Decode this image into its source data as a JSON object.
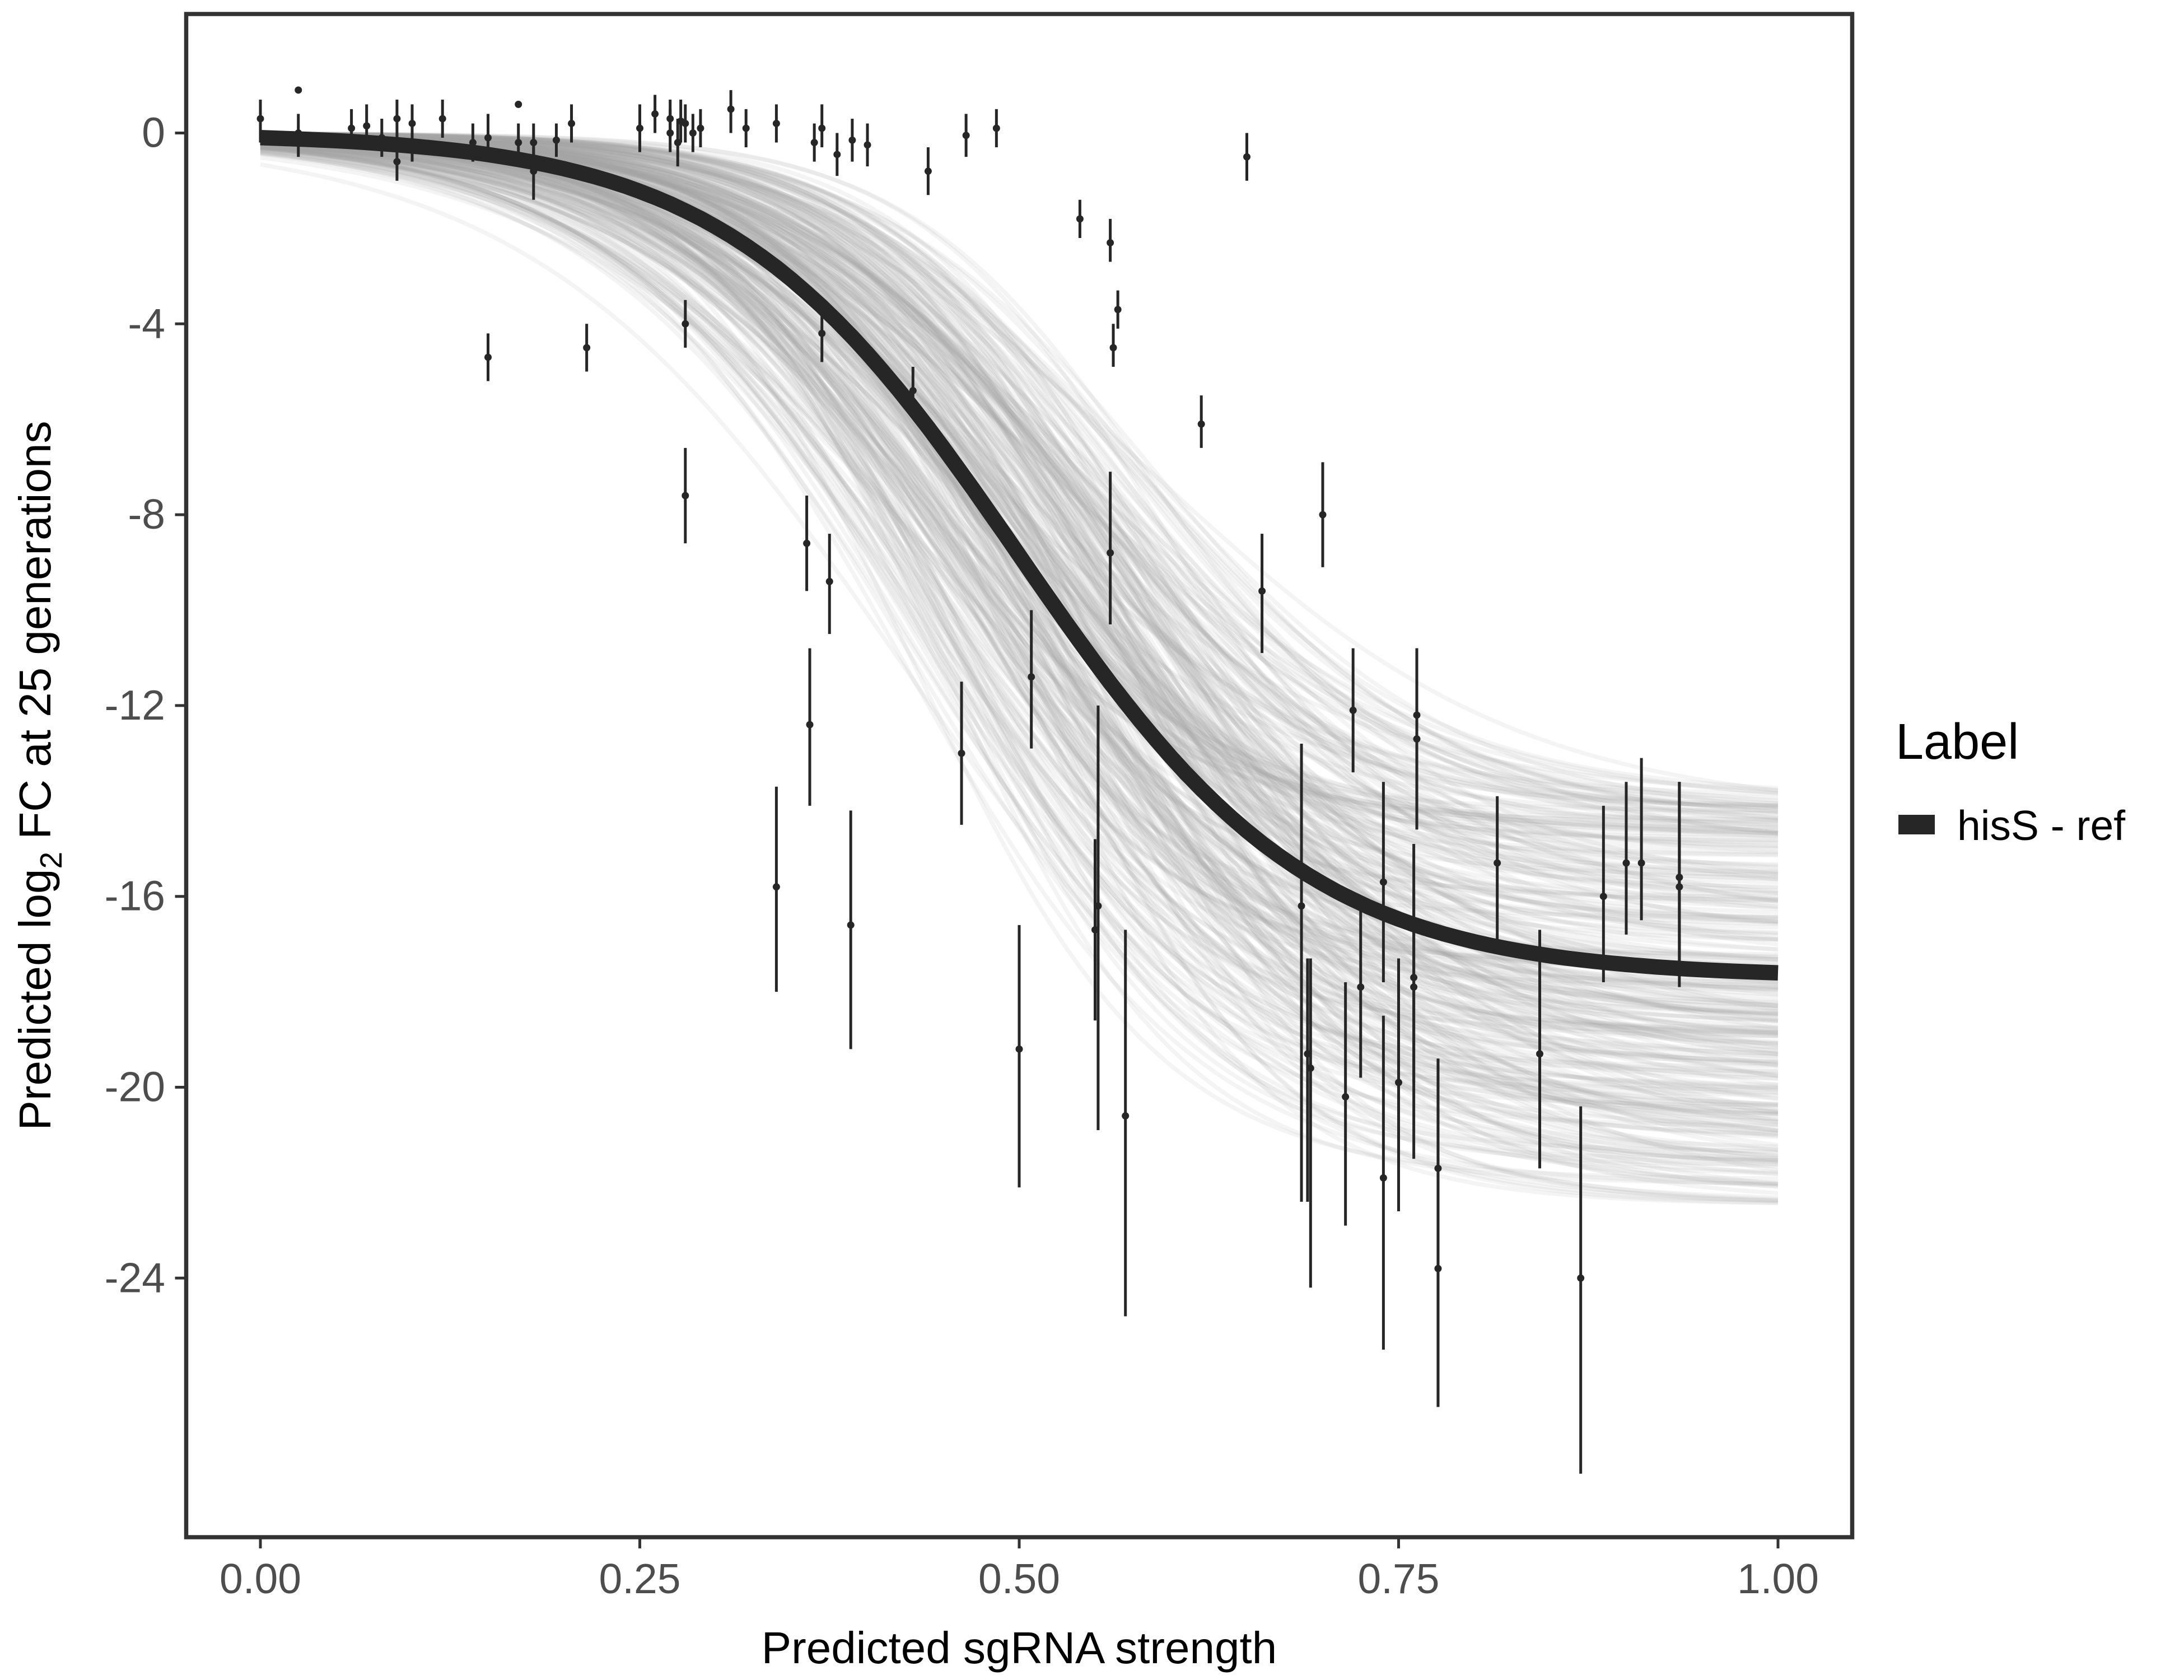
{
  "chart_data": {
    "type": "scatter",
    "title": "",
    "xlabel": "Predicted sgRNA strength",
    "ylabel_parts": [
      "Predicted  log",
      "2",
      " FC at 25 generations"
    ],
    "xlim": [
      -0.05,
      1.05
    ],
    "ylim": [
      -29.5,
      2.5
    ],
    "xticks": [
      0,
      0.25,
      0.5,
      0.75,
      1
    ],
    "xtick_labels": [
      "0.00",
      "0.25",
      "0.50",
      "0.75",
      "1.00"
    ],
    "yticks": [
      0,
      -4,
      -8,
      -12,
      -16,
      -20,
      -24
    ],
    "ytick_labels": [
      "0",
      "-4",
      "-8",
      "-12",
      "-16",
      "-20",
      "-24"
    ],
    "grid": false,
    "legend": {
      "title": "Label",
      "placement": "right",
      "entries": [
        {
          "label": "hisS - ref",
          "color": "#262626"
        }
      ]
    },
    "fit": {
      "type": "logistic",
      "asymptote": -17.7,
      "midpoint": 0.5,
      "slope": 10.4,
      "color": "#262626"
    },
    "posterior_draws": {
      "count": 300,
      "color": "#a6a6a6",
      "asymptote_range": [
        -22.5,
        -13.8
      ],
      "midpoint_range": [
        0.42,
        0.6
      ],
      "slope_range": [
        8,
        13
      ]
    },
    "points": [
      [
        0.0,
        0.3,
        -0.2,
        0.7
      ],
      [
        0.025,
        0.9,
        0.9,
        0.9
      ],
      [
        0.025,
        0.0,
        -0.5,
        0.4
      ],
      [
        0.06,
        0.1,
        -0.3,
        0.5
      ],
      [
        0.07,
        0.15,
        -0.3,
        0.6
      ],
      [
        0.08,
        -0.1,
        -0.5,
        0.3
      ],
      [
        0.09,
        0.3,
        -0.2,
        0.7
      ],
      [
        0.09,
        -0.6,
        -1.0,
        -0.2
      ],
      [
        0.1,
        0.2,
        -0.2,
        0.6
      ],
      [
        0.1,
        -0.2,
        -0.6,
        0.2
      ],
      [
        0.12,
        0.3,
        -0.1,
        0.7
      ],
      [
        0.14,
        -0.2,
        -0.6,
        0.2
      ],
      [
        0.15,
        -0.1,
        -0.6,
        0.4
      ],
      [
        0.15,
        -4.7,
        -5.2,
        -4.2
      ],
      [
        0.17,
        0.6,
        0.6,
        0.6
      ],
      [
        0.17,
        -0.2,
        -0.6,
        0.2
      ],
      [
        0.18,
        -0.2,
        -0.6,
        0.2
      ],
      [
        0.18,
        -0.8,
        -1.4,
        -0.3
      ],
      [
        0.195,
        -0.15,
        -0.5,
        0.2
      ],
      [
        0.205,
        0.2,
        -0.2,
        0.6
      ],
      [
        0.215,
        -4.5,
        -5.0,
        -4.0
      ],
      [
        0.25,
        0.1,
        -0.4,
        0.6
      ],
      [
        0.26,
        0.4,
        0.0,
        0.8
      ],
      [
        0.27,
        0.3,
        -0.1,
        0.7
      ],
      [
        0.27,
        0.0,
        -0.4,
        0.5
      ],
      [
        0.275,
        -0.2,
        -0.7,
        0.3
      ],
      [
        0.277,
        0.25,
        -0.2,
        0.7
      ],
      [
        0.28,
        -4.0,
        -4.5,
        -3.5
      ],
      [
        0.28,
        -7.6,
        -8.6,
        -6.6
      ],
      [
        0.28,
        0.2,
        -0.2,
        0.6
      ],
      [
        0.285,
        0.0,
        -0.4,
        0.4
      ],
      [
        0.29,
        0.1,
        -0.3,
        0.5
      ],
      [
        0.31,
        0.5,
        0.0,
        0.9
      ],
      [
        0.32,
        0.1,
        -0.3,
        0.5
      ],
      [
        0.34,
        0.2,
        -0.2,
        0.6
      ],
      [
        0.34,
        -15.8,
        -18.0,
        -13.7
      ],
      [
        0.36,
        -8.6,
        -9.6,
        -7.6
      ],
      [
        0.362,
        -12.4,
        -14.1,
        -10.8
      ],
      [
        0.365,
        -0.2,
        -0.6,
        0.2
      ],
      [
        0.37,
        0.1,
        -0.3,
        0.6
      ],
      [
        0.37,
        -4.2,
        -4.8,
        -3.7
      ],
      [
        0.375,
        -9.4,
        -10.5,
        -8.4
      ],
      [
        0.38,
        -0.45,
        -0.9,
        0.0
      ],
      [
        0.39,
        -0.15,
        -0.6,
        0.3
      ],
      [
        0.389,
        -16.6,
        -19.2,
        -14.2
      ],
      [
        0.4,
        -0.25,
        -0.7,
        0.2
      ],
      [
        0.43,
        -5.4,
        -5.9,
        -4.9
      ],
      [
        0.44,
        -0.8,
        -1.3,
        -0.3
      ],
      [
        0.462,
        -13.0,
        -14.5,
        -11.5
      ],
      [
        0.465,
        -0.05,
        -0.5,
        0.4
      ],
      [
        0.485,
        0.1,
        -0.3,
        0.5
      ],
      [
        0.5,
        -19.2,
        -22.1,
        -16.6
      ],
      [
        0.508,
        -11.4,
        -12.9,
        -10.0
      ],
      [
        0.54,
        -1.8,
        -2.2,
        -1.4
      ],
      [
        0.55,
        -16.7,
        -18.6,
        -14.8
      ],
      [
        0.552,
        -16.2,
        -20.9,
        -12.0
      ],
      [
        0.56,
        -2.3,
        -2.7,
        -1.8
      ],
      [
        0.56,
        -8.8,
        -10.3,
        -7.1
      ],
      [
        0.562,
        -4.5,
        -4.9,
        -4.0
      ],
      [
        0.565,
        -3.7,
        -4.1,
        -3.3
      ],
      [
        0.57,
        -20.6,
        -24.8,
        -16.7
      ],
      [
        0.62,
        -6.1,
        -6.6,
        -5.5
      ],
      [
        0.65,
        -0.5,
        -1.0,
        0.0
      ],
      [
        0.66,
        -9.6,
        -10.9,
        -8.4
      ],
      [
        0.686,
        -16.2,
        -22.4,
        -12.8
      ],
      [
        0.69,
        -19.3,
        -22.4,
        -17.3
      ],
      [
        0.692,
        -19.6,
        -24.2,
        -17.3
      ],
      [
        0.7,
        -8.0,
        -9.1,
        -6.9
      ],
      [
        0.715,
        -20.2,
        -22.9,
        -17.8
      ],
      [
        0.72,
        -12.1,
        -13.4,
        -10.8
      ],
      [
        0.725,
        -17.9,
        -19.8,
        -16.2
      ],
      [
        0.74,
        -15.7,
        -17.8,
        -13.6
      ],
      [
        0.74,
        -21.9,
        -25.5,
        -18.5
      ],
      [
        0.75,
        -19.9,
        -22.6,
        -17.3
      ],
      [
        0.76,
        -17.9,
        -19.9,
        -15.9
      ],
      [
        0.76,
        -17.7,
        -21.5,
        -14.9
      ],
      [
        0.762,
        -12.2,
        -14.4,
        -10.8
      ],
      [
        0.762,
        -12.7,
        -14.6,
        -10.8
      ],
      [
        0.776,
        -21.7,
        -26.7,
        -19.4
      ],
      [
        0.776,
        -23.8,
        -26.7,
        -19.4
      ],
      [
        0.815,
        -15.3,
        -16.9,
        -13.9
      ],
      [
        0.843,
        -19.3,
        -21.7,
        -16.7
      ],
      [
        0.87,
        -24.0,
        -28.1,
        -20.4
      ],
      [
        0.885,
        -16.0,
        -17.8,
        -14.1
      ],
      [
        0.9,
        -15.3,
        -16.8,
        -13.6
      ],
      [
        0.91,
        -15.3,
        -16.5,
        -13.1
      ],
      [
        0.935,
        -15.8,
        -17.9,
        -13.6
      ],
      [
        0.935,
        -15.6,
        -17.5,
        -13.6
      ]
    ],
    "points_format": [
      "x",
      "y",
      "y_lower",
      "y_upper"
    ]
  }
}
